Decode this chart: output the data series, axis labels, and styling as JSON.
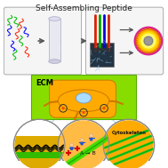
{
  "title": "Self-Assembling Peptide",
  "title_fontsize": 6.5,
  "bg_color": "#ffffff",
  "top_box_edge": "#aaaaaa",
  "ecm_box_color": "#88dd00",
  "ecm_label": "ECM",
  "ecm_label_fontsize": 6,
  "cell_body_color": "#ffaa00",
  "cell_nucleus_color": "#aaddff",
  "arrow_color": "#555555",
  "peptide_colors": [
    "#ff2200",
    "#00bb00",
    "#0000ff"
  ],
  "connector_color": "#99ccee",
  "cytoskeleton_label": "Cytoskeleton",
  "reaction_label": "A → B",
  "nano_colors": [
    "#ffee00",
    "#dd6600",
    "#cc44aa",
    "#aaaaaa"
  ],
  "micro_bg": "#223344",
  "micro_fiber": "#88bbdd"
}
